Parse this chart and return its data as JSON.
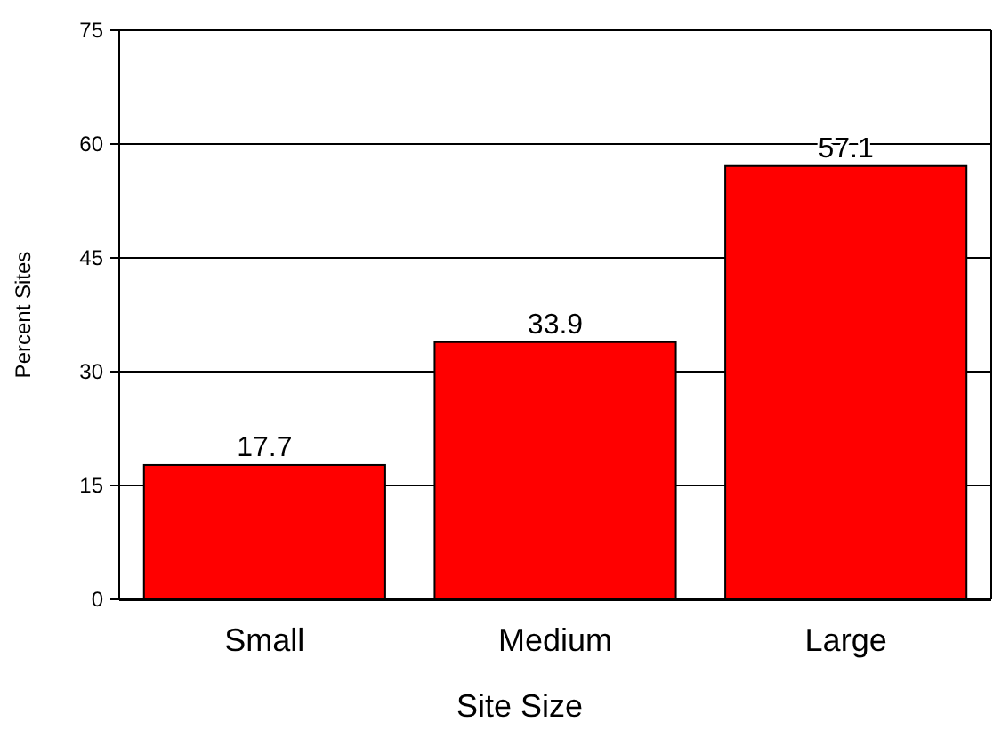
{
  "chart_data": {
    "type": "bar",
    "xlabel": "Site Size",
    "ylabel": "Percent Sites",
    "categories": [
      "Small",
      "Medium",
      "Large"
    ],
    "values": [
      17.7,
      33.9,
      57.1
    ],
    "color": "#ff0000",
    "ylim": [
      0,
      75
    ],
    "yticks": [
      0,
      15,
      30,
      45,
      60,
      75
    ],
    "grid": "y",
    "data_labels": true
  }
}
